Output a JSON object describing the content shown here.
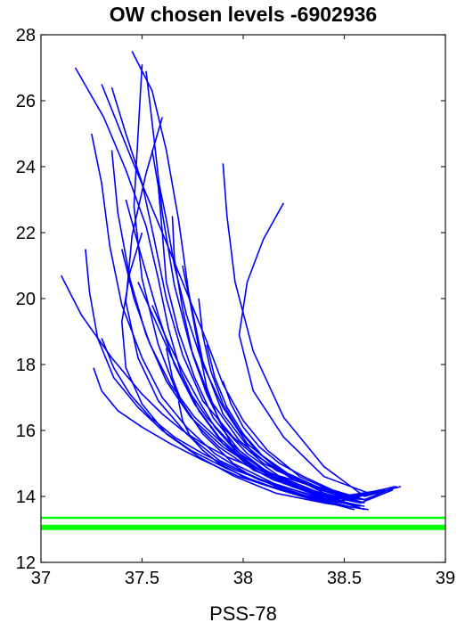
{
  "chart_data": {
    "type": "line",
    "title": "OW chosen levels -6902936",
    "xlabel": "PSS-78",
    "ylabel": "",
    "xlim": [
      37,
      39
    ],
    "ylim": [
      12,
      28
    ],
    "xticks": [
      37,
      37.5,
      38,
      38.5,
      39
    ],
    "xtick_labels": [
      "37",
      "37.5",
      "38",
      "38.5",
      "39"
    ],
    "yticks": [
      12,
      14,
      16,
      18,
      20,
      22,
      24,
      26,
      28
    ],
    "ytick_labels": [
      "12",
      "14",
      "16",
      "18",
      "20",
      "22",
      "24",
      "26",
      "28"
    ],
    "grid": false,
    "profile_color": "#0000ff",
    "level_color": "#00ff00",
    "chosen_levels": [
      {
        "y": 13.35,
        "weight": "thin"
      },
      {
        "y": 13.06,
        "weight": "thick"
      }
    ],
    "series": [
      {
        "x": [
          37.17,
          37.31,
          37.42,
          37.52,
          37.58,
          37.63,
          37.69,
          37.78,
          37.9,
          38.05,
          38.25,
          38.5,
          38.72
        ],
        "y": [
          27.0,
          25.5,
          23.9,
          22.2,
          20.6,
          19.1,
          17.8,
          16.6,
          15.6,
          14.8,
          14.3,
          13.9,
          14.2
        ]
      },
      {
        "x": [
          37.1,
          37.2,
          37.35,
          37.5,
          37.6,
          37.7,
          37.8,
          37.92,
          38.08,
          38.3,
          38.55,
          38.75
        ],
        "y": [
          20.7,
          19.5,
          18.2,
          17.1,
          16.5,
          16.0,
          15.6,
          15.2,
          14.8,
          14.4,
          14.0,
          14.3
        ]
      },
      {
        "x": [
          37.35,
          37.42,
          37.5,
          37.56,
          37.62,
          37.7,
          37.8,
          37.95,
          38.1,
          38.35,
          38.6
        ],
        "y": [
          26.4,
          25.0,
          23.5,
          21.8,
          20.0,
          18.3,
          16.9,
          15.8,
          15.0,
          14.3,
          13.8
        ]
      },
      {
        "x": [
          37.45,
          37.55,
          37.62,
          37.68,
          37.73,
          37.8,
          37.9,
          38.05,
          38.25,
          38.48,
          38.7
        ],
        "y": [
          27.5,
          26.3,
          24.5,
          22.4,
          20.2,
          18.1,
          16.5,
          15.3,
          14.5,
          14.0,
          14.2
        ]
      },
      {
        "x": [
          37.5,
          37.48,
          37.46,
          37.5,
          37.58,
          37.68,
          37.8,
          37.95,
          38.15,
          38.4,
          38.65
        ],
        "y": [
          27.1,
          25.0,
          22.8,
          20.6,
          18.6,
          17.0,
          15.9,
          15.0,
          14.4,
          13.9,
          14.1
        ]
      },
      {
        "x": [
          37.25,
          37.3,
          37.34,
          37.4,
          37.5,
          37.6,
          37.72,
          37.86,
          38.02,
          38.2,
          38.45,
          38.68
        ],
        "y": [
          25.0,
          23.5,
          21.6,
          19.8,
          18.2,
          17.0,
          16.1,
          15.3,
          14.7,
          14.2,
          13.8,
          14.2
        ]
      },
      {
        "x": [
          37.55,
          37.58,
          37.6,
          37.62,
          37.68,
          37.76,
          37.85,
          37.98,
          38.15,
          38.38,
          38.62
        ],
        "y": [
          24.5,
          23.4,
          22.0,
          20.5,
          19.0,
          17.6,
          16.4,
          15.4,
          14.6,
          14.0,
          13.9
        ]
      },
      {
        "x": [
          37.9,
          37.92,
          37.96,
          38.05,
          38.2,
          38.4,
          38.6,
          38.78
        ],
        "y": [
          24.1,
          22.5,
          20.5,
          18.4,
          16.4,
          14.9,
          14.0,
          14.3
        ]
      },
      {
        "x": [
          38.2,
          38.1,
          38.02,
          37.98,
          38.05,
          38.2,
          38.4,
          38.62
        ],
        "y": [
          22.9,
          21.8,
          20.5,
          18.9,
          17.2,
          15.8,
          14.6,
          14.1
        ]
      },
      {
        "x": [
          37.3,
          37.45,
          37.6,
          37.72,
          37.82,
          37.9,
          38.0,
          38.12,
          38.28,
          38.5,
          38.7
        ],
        "y": [
          26.5,
          24.2,
          22.0,
          20.2,
          18.7,
          17.4,
          16.3,
          15.4,
          14.6,
          14.0,
          14.2
        ]
      },
      {
        "x": [
          37.22,
          37.24,
          37.28,
          37.36,
          37.48,
          37.6,
          37.74,
          37.9,
          38.08,
          38.3,
          38.55
        ],
        "y": [
          21.5,
          20.2,
          18.8,
          17.6,
          16.7,
          16.0,
          15.4,
          14.9,
          14.4,
          14.0,
          13.6
        ]
      },
      {
        "x": [
          37.6,
          37.52,
          37.45,
          37.42,
          37.48,
          37.58,
          37.72,
          37.88,
          38.08,
          38.32,
          38.58
        ],
        "y": [
          25.5,
          23.8,
          21.9,
          19.9,
          18.2,
          16.9,
          15.9,
          15.1,
          14.5,
          14.0,
          13.7
        ]
      },
      {
        "x": [
          37.65,
          37.66,
          37.7,
          37.75,
          37.82,
          37.9,
          38.02,
          38.18,
          38.38,
          38.6
        ],
        "y": [
          22.5,
          21.2,
          19.7,
          18.3,
          17.1,
          16.1,
          15.3,
          14.6,
          14.1,
          13.8
        ]
      },
      {
        "x": [
          37.3,
          37.36,
          37.44,
          37.54,
          37.66,
          37.8,
          37.96,
          38.14,
          38.36,
          38.6
        ],
        "y": [
          18.8,
          17.9,
          17.1,
          16.4,
          15.8,
          15.3,
          14.8,
          14.4,
          14.0,
          13.7
        ]
      },
      {
        "x": [
          37.42,
          37.5,
          37.58,
          37.66,
          37.76,
          37.88,
          38.02,
          38.2,
          38.42,
          38.66
        ],
        "y": [
          23.0,
          21.2,
          19.5,
          18.0,
          16.8,
          15.8,
          15.0,
          14.4,
          13.9,
          14.1
        ]
      },
      {
        "x": [
          37.5,
          37.44,
          37.4,
          37.42,
          37.5,
          37.62,
          37.78,
          37.96,
          38.16,
          38.4
        ],
        "y": [
          22.0,
          20.8,
          19.3,
          17.9,
          16.8,
          15.9,
          15.2,
          14.6,
          14.1,
          13.8
        ]
      },
      {
        "x": [
          37.7,
          37.74,
          37.78,
          37.82,
          37.88,
          37.95,
          38.05,
          38.2,
          38.4,
          38.6
        ],
        "y": [
          21.0,
          19.8,
          18.5,
          17.3,
          16.3,
          15.5,
          14.9,
          14.4,
          14.0,
          13.6
        ]
      },
      {
        "x": [
          37.62,
          37.65,
          37.7,
          37.78,
          37.88,
          38.0,
          38.15,
          38.35,
          38.58
        ],
        "y": [
          18.5,
          17.6,
          16.8,
          16.1,
          15.5,
          15.0,
          14.5,
          14.1,
          13.8
        ]
      },
      {
        "x": [
          37.55,
          37.62,
          37.7,
          37.78,
          37.86,
          37.96,
          38.1,
          38.28,
          38.5,
          38.72
        ],
        "y": [
          19.8,
          18.8,
          17.8,
          16.9,
          16.1,
          15.4,
          14.8,
          14.3,
          13.9,
          14.2
        ]
      },
      {
        "x": [
          37.35,
          37.38,
          37.44,
          37.52,
          37.62,
          37.74,
          37.9,
          38.08,
          38.3,
          38.52
        ],
        "y": [
          24.5,
          22.6,
          20.6,
          18.9,
          17.5,
          16.4,
          15.5,
          14.8,
          14.2,
          13.8
        ]
      },
      {
        "x": [
          37.48,
          37.56,
          37.64,
          37.72,
          37.82,
          37.94,
          38.08,
          38.26,
          38.46,
          38.68
        ],
        "y": [
          20.5,
          19.4,
          18.3,
          17.3,
          16.4,
          15.6,
          14.9,
          14.3,
          13.9,
          14.2
        ]
      },
      {
        "x": [
          37.26,
          37.3,
          37.38,
          37.5,
          37.64,
          37.8,
          37.98,
          38.18,
          38.4,
          38.62
        ],
        "y": [
          17.9,
          17.2,
          16.6,
          16.1,
          15.6,
          15.1,
          14.6,
          14.2,
          13.8,
          13.6
        ]
      },
      {
        "x": [
          37.58,
          37.62,
          37.66,
          37.72,
          37.8,
          37.9,
          38.02,
          38.18,
          38.38,
          38.6
        ],
        "y": [
          23.6,
          22.4,
          21.0,
          19.5,
          18.0,
          16.7,
          15.6,
          14.8,
          14.2,
          13.8
        ]
      },
      {
        "x": [
          37.78,
          37.8,
          37.84,
          37.9,
          37.98,
          38.08,
          38.22,
          38.4,
          38.6,
          38.76
        ],
        "y": [
          20.0,
          18.9,
          17.8,
          16.8,
          16.0,
          15.3,
          14.7,
          14.2,
          13.9,
          14.3
        ]
      },
      {
        "x": [
          37.4,
          37.46,
          37.54,
          37.64,
          37.76,
          37.9,
          38.06,
          38.24,
          38.46,
          38.7
        ],
        "y": [
          21.5,
          20.0,
          18.6,
          17.4,
          16.4,
          15.6,
          14.9,
          14.3,
          13.9,
          14.2
        ]
      },
      {
        "x": [
          37.82,
          37.86,
          37.92,
          38.0,
          38.1,
          38.24,
          38.4,
          38.58,
          38.74
        ],
        "y": [
          18.6,
          17.6,
          16.7,
          15.9,
          15.2,
          14.6,
          14.1,
          13.8,
          14.2
        ]
      },
      {
        "x": [
          37.52,
          37.56,
          37.6,
          37.66,
          37.74,
          37.84,
          37.98,
          38.16,
          38.38,
          38.6
        ],
        "y": [
          26.9,
          24.8,
          22.6,
          20.4,
          18.5,
          16.9,
          15.7,
          14.8,
          14.2,
          13.8
        ]
      },
      {
        "x": [
          37.68,
          37.7,
          37.74,
          37.8,
          37.88,
          38.0,
          38.14,
          38.32,
          38.52
        ],
        "y": [
          16.9,
          16.3,
          15.8,
          15.4,
          15.0,
          14.6,
          14.3,
          14.0,
          13.7
        ]
      },
      {
        "x": [
          37.9,
          37.94,
          38.0,
          38.08,
          38.18,
          38.3,
          38.44,
          38.6,
          38.76
        ],
        "y": [
          17.5,
          16.8,
          16.1,
          15.5,
          15.0,
          14.6,
          14.2,
          13.9,
          14.3
        ]
      }
    ]
  }
}
